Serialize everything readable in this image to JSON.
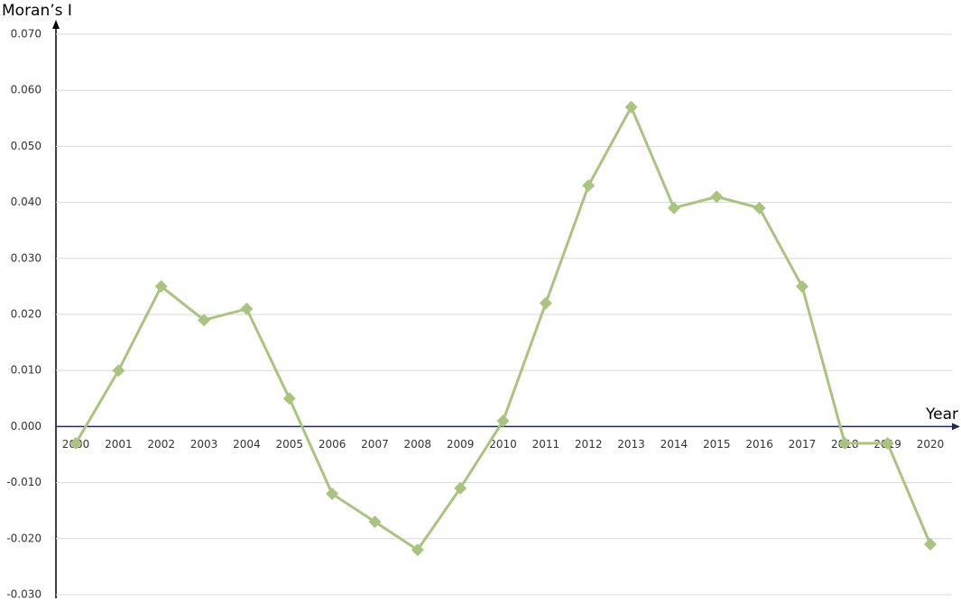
{
  "chart_data": {
    "type": "line",
    "y_label": "Moran’s I",
    "x_label": "Year",
    "categories": [
      "2000",
      "2001",
      "2002",
      "2003",
      "2004",
      "2005",
      "2006",
      "2007",
      "2008",
      "2009",
      "2010",
      "2011",
      "2012",
      "2013",
      "2014",
      "2015",
      "2016",
      "2017",
      "2018",
      "2019",
      "2020"
    ],
    "series": [
      {
        "name": "Moran’s I",
        "color": "#a9c47f",
        "values": [
          -0.003,
          0.01,
          0.025,
          0.019,
          0.021,
          0.005,
          -0.012,
          -0.017,
          -0.022,
          -0.011,
          0.001,
          0.022,
          0.043,
          0.057,
          0.039,
          0.041,
          0.039,
          0.025,
          -0.003,
          -0.003,
          -0.021
        ]
      }
    ],
    "ylim": [
      -0.03,
      0.07
    ],
    "yticks": [
      {
        "value": -0.03,
        "label": "-0.030"
      },
      {
        "value": -0.02,
        "label": "-0.020"
      },
      {
        "value": -0.01,
        "label": "-0.010"
      },
      {
        "value": 0,
        "label": "0.000"
      },
      {
        "value": 0.01,
        "label": "0.010"
      },
      {
        "value": 0.02,
        "label": "0.020"
      },
      {
        "value": 0.03,
        "label": "0.030"
      },
      {
        "value": 0.04,
        "label": "0.040"
      },
      {
        "value": 0.05,
        "label": "0.050"
      },
      {
        "value": 0.06,
        "label": "0.060"
      },
      {
        "value": 0.07,
        "label": "0.070"
      }
    ],
    "grid": true
  }
}
